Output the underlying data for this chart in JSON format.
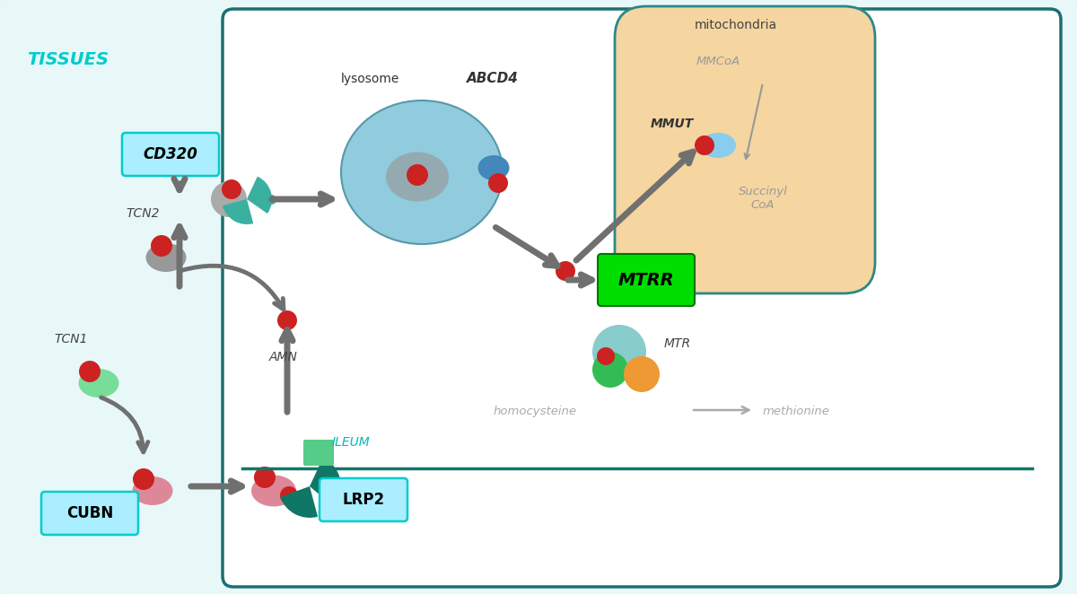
{
  "bg_color": "#e8f8f8",
  "outer_border_color": "#2ab8b8",
  "inner_border_color": "#1a7070",
  "tissues_label": "TISSUES",
  "tissues_color": "#00cccc",
  "lysosome_color": "#90ccdd",
  "lysosome_border": "#5599aa",
  "lysosome_label": "lysosome",
  "mitochondria_color": "#f5d5a0",
  "mitochondria_border": "#2a8888",
  "mitochondria_label": "mitochondria",
  "cd320_label": "CD320",
  "label_box_color": "#aaeeff",
  "label_box_border": "#00cccc",
  "cubn_label": "CUBN",
  "lrp2_label": "LRP2",
  "ileum_label": "ILEUM",
  "ileum_color": "#00bbbb",
  "mtrr_label": "MTRR",
  "mtrr_box_color": "#00dd00",
  "mtrr_border": "#007700",
  "abcd4_label": "ABCD4",
  "mmut_label": "MMUT",
  "mtr_label": "MTR",
  "tcn1_label": "TCN1",
  "tcn2_label": "TCN2",
  "amn_label": "AMN",
  "mmcoa_label": "MMCoA",
  "succinyl_label": "Succinyl\nCoA",
  "homocysteine_label": "homocysteine",
  "methionine_label": "methionine",
  "arrow_color": "#707070",
  "red_dot": "#cc2222",
  "gray_blob": "#999999",
  "teal_receptor": "#3ab0a0",
  "dark_teal_receptor": "#107766",
  "light_blue": "#88ccee",
  "steel_blue": "#4488bb",
  "green_dot": "#44cc66",
  "mint_dot": "#88ddcc",
  "pink_blob": "#dd8899",
  "orange_dot": "#ee9933",
  "inner_bg": "#ffffff",
  "cell_wall_color": "#1a7070"
}
